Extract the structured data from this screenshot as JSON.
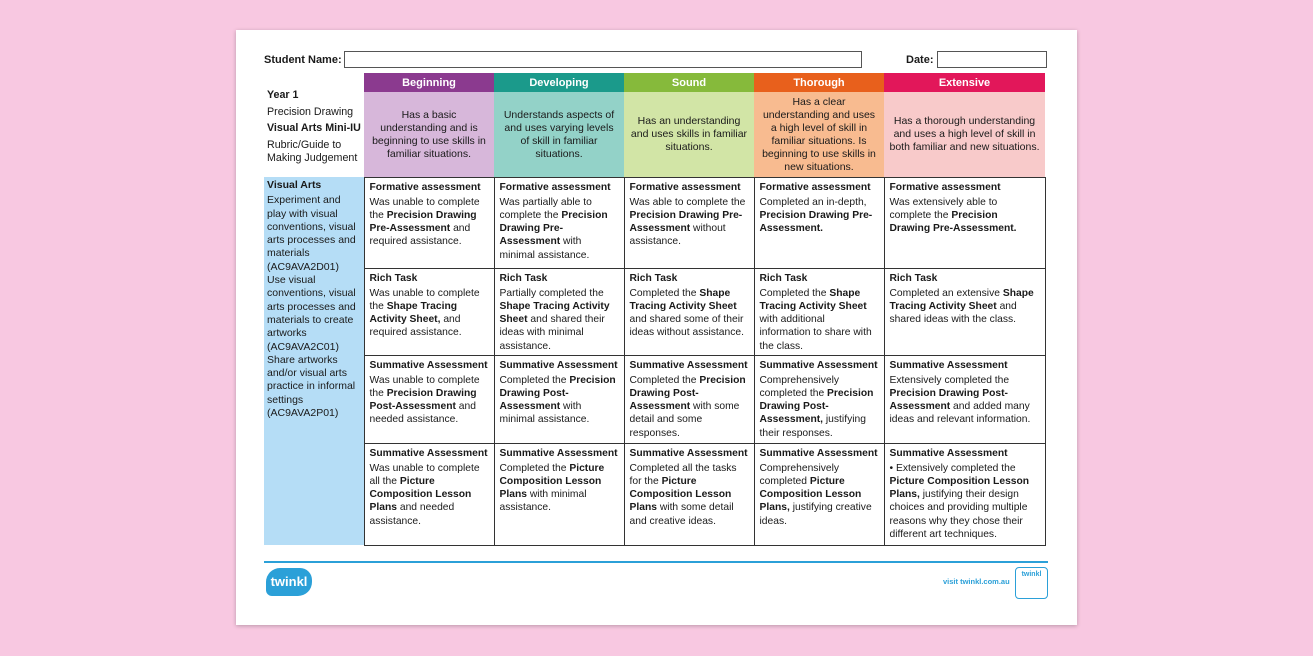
{
  "header": {
    "student_name_label": "Student Name:",
    "date_label": "Date:"
  },
  "intro": {
    "year": "Year 1",
    "topic": "Precision Drawing",
    "unit": "Visual Arts Mini-IU",
    "subtitle": "Rubric/Guide to Making Judgement"
  },
  "levels": [
    {
      "name": "Beginning",
      "color": "#8b3a8f",
      "light": "#d7b7da",
      "description": "Has a basic understanding and is beginning to use skills in familiar situations."
    },
    {
      "name": "Developing",
      "color": "#1b9a8b",
      "light": "#93d2c8",
      "description": "Understands aspects of and uses varying levels of skill in familiar situations."
    },
    {
      "name": "Sound",
      "color": "#86ba3b",
      "light": "#d2e5a6",
      "description": "Has an understanding and uses skills in familiar situations."
    },
    {
      "name": "Thorough",
      "color": "#e8601c",
      "light": "#f8bb90",
      "description": "Has a clear understanding and uses a high level of skill in familiar situations. Is beginning to use skills in new situations."
    },
    {
      "name": "Extensive",
      "color": "#e2175a",
      "light": "#f8caca",
      "description": "Has a thorough understanding and uses a high level of skill in both familiar and new situations."
    }
  ],
  "curriculum": {
    "title": "Visual Arts",
    "items": [
      "Experiment and play with visual conventions, visual arts processes and materials (AC9AVA2D01)",
      "Use visual conventions, visual arts processes and materials to create artworks (AC9AVA2C01)",
      "Share artworks and/or visual arts practice in informal settings (AC9AVA2P01)"
    ]
  },
  "table": {
    "rows": [
      {
        "heading": "Formative assessment",
        "cells": [
          [
            {
              "text": "Was unable to complete the ",
              "bold": false
            },
            {
              "text": "Precision Drawing Pre-Assessment",
              "bold": true
            },
            {
              "text": " and required assistance.",
              "bold": false
            }
          ],
          [
            {
              "text": "Was partially able to complete the ",
              "bold": false
            },
            {
              "text": "Precision Drawing Pre-Assessment",
              "bold": true
            },
            {
              "text": " with minimal assistance.",
              "bold": false
            }
          ],
          [
            {
              "text": "Was able to complete the ",
              "bold": false
            },
            {
              "text": "Precision Drawing Pre-Assessment",
              "bold": true
            },
            {
              "text": " without assistance.",
              "bold": false
            }
          ],
          [
            {
              "text": "Completed an in-depth, ",
              "bold": false
            },
            {
              "text": "Precision Drawing Pre-Assessment.",
              "bold": true
            }
          ],
          [
            {
              "text": "Was extensively able to complete the ",
              "bold": false
            },
            {
              "text": "Precision Drawing Pre-Assessment.",
              "bold": true
            }
          ]
        ]
      },
      {
        "heading": "Rich Task",
        "cells": [
          [
            {
              "text": "Was unable to complete the ",
              "bold": false
            },
            {
              "text": "Shape Tracing Activity Sheet,",
              "bold": true
            },
            {
              "text": " and required assistance.",
              "bold": false
            }
          ],
          [
            {
              "text": "Partially completed the ",
              "bold": false
            },
            {
              "text": "Shape Tracing Activity Sheet",
              "bold": true
            },
            {
              "text": " and shared their ideas with minimal assistance.",
              "bold": false
            }
          ],
          [
            {
              "text": "Completed the ",
              "bold": false
            },
            {
              "text": "Shape Tracing Activity Sheet",
              "bold": true
            },
            {
              "text": " and shared some of their ideas without assistance.",
              "bold": false
            }
          ],
          [
            {
              "text": "Completed the ",
              "bold": false
            },
            {
              "text": "Shape Tracing Activity Sheet",
              "bold": true
            },
            {
              "text": " with additional information to share with the class.",
              "bold": false
            }
          ],
          [
            {
              "text": "Completed an extensive ",
              "bold": false
            },
            {
              "text": "Shape Tracing Activity Sheet",
              "bold": true
            },
            {
              "text": " and shared ideas with the class.",
              "bold": false
            }
          ]
        ]
      },
      {
        "heading": "Summative Assessment",
        "cells": [
          [
            {
              "text": "Was unable to complete the ",
              "bold": false
            },
            {
              "text": "Precision Drawing Post-Assessment",
              "bold": true
            },
            {
              "text": " and needed assistance.",
              "bold": false
            }
          ],
          [
            {
              "text": "Completed the ",
              "bold": false
            },
            {
              "text": "Precision Drawing Post-Assessment",
              "bold": true
            },
            {
              "text": " with minimal assistance.",
              "bold": false
            }
          ],
          [
            {
              "text": "Completed the ",
              "bold": false
            },
            {
              "text": "Precision Drawing Post-Assessment",
              "bold": true
            },
            {
              "text": " with some detail and some responses.",
              "bold": false
            }
          ],
          [
            {
              "text": "Comprehensively completed the ",
              "bold": false
            },
            {
              "text": "Precision Drawing Post-Assessment,",
              "bold": true
            },
            {
              "text": " justifying their responses.",
              "bold": false
            }
          ],
          [
            {
              "text": "Extensively completed the ",
              "bold": false
            },
            {
              "text": "Precision Drawing Post-Assessment",
              "bold": true
            },
            {
              "text": " and added many ideas and relevant information.",
              "bold": false
            }
          ]
        ]
      },
      {
        "heading": "Summative Assessment",
        "cells": [
          [
            {
              "text": "Was unable to complete all the ",
              "bold": false
            },
            {
              "text": "Picture Composition Lesson Plans",
              "bold": true
            },
            {
              "text": " and needed assistance.",
              "bold": false
            }
          ],
          [
            {
              "text": "Completed the ",
              "bold": false
            },
            {
              "text": "Picture Composition Lesson Plans",
              "bold": true
            },
            {
              "text": " with minimal assistance.",
              "bold": false
            }
          ],
          [
            {
              "text": "Completed all the tasks for the ",
              "bold": false
            },
            {
              "text": "Picture Composition Lesson Plans",
              "bold": true
            },
            {
              "text": " with some detail and creative ideas.",
              "bold": false
            }
          ],
          [
            {
              "text": "Comprehensively completed ",
              "bold": false
            },
            {
              "text": "Picture Composition Lesson Plans,",
              "bold": true
            },
            {
              "text": " justifying creative ideas.",
              "bold": false
            }
          ],
          [
            {
              "text": "• Extensively completed the ",
              "bold": false
            },
            {
              "text": "Picture Composition Lesson Plans,",
              "bold": true
            },
            {
              "text": " justifying their design choices and providing multiple reasons why they chose their different art techniques.",
              "bold": false
            }
          ]
        ]
      }
    ]
  },
  "footer": {
    "logo": "twinkl",
    "url": "visit twinkl.com.au",
    "badge": "twinkl"
  }
}
